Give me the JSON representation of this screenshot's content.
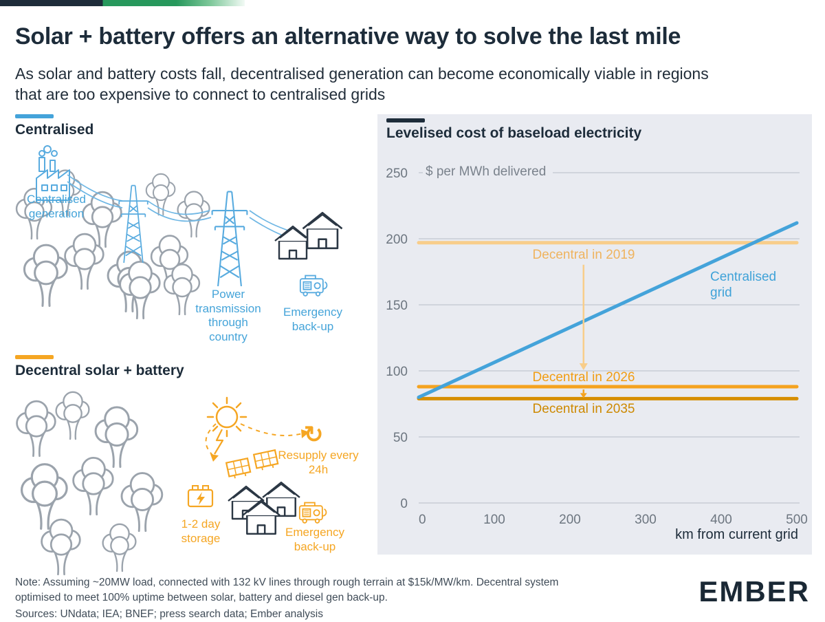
{
  "brand": {
    "logo": "EMBER",
    "colors": {
      "dark": "#1d2c3a",
      "blue": "#44a3da",
      "orange": "#f5a623",
      "orange_light": "#f8cd8a",
      "orange_dark": "#d68e00",
      "green": "#27985c",
      "panel_bg": "#e9ebf1"
    }
  },
  "header": {
    "title": "Solar + battery offers an alternative way to solve the last mile",
    "subtitle": "As solar and battery costs fall, decentralised generation can become economically viable in regions that are too expensive to connect to centralised grids"
  },
  "centralised": {
    "heading": "Centralised",
    "label_generation": "Centralised generation",
    "label_transmission": "Power transmission through country",
    "label_backup": "Emergency back-up"
  },
  "decentral": {
    "heading": "Decentral solar + battery",
    "label_resupply": "Resupply every 24h",
    "label_storage": "1-2 day storage",
    "label_backup": "Emergency back-up"
  },
  "icons": {
    "resupply": "↻"
  },
  "chart": {
    "heading": "Levelised cost of baseload electricity"
  },
  "chart_data": {
    "type": "line",
    "title": "Levelised cost of baseload electricity",
    "unit_label": "$ per MWh delivered",
    "xlabel": "km from current grid",
    "xlim": [
      0,
      500
    ],
    "ylim": [
      0,
      250
    ],
    "x_ticks": [
      0,
      100,
      200,
      300,
      400,
      500
    ],
    "y_ticks": [
      0,
      50,
      100,
      150,
      200,
      250
    ],
    "grid": "horizontal",
    "legend": "labels-on-chart",
    "series": [
      {
        "name": "Centralised grid",
        "color": "#44a3da",
        "label_color": "#3fa2d8",
        "x": [
          0,
          500
        ],
        "y": [
          80,
          212
        ]
      },
      {
        "name": "Decentral in 2019",
        "color": "#f8cd8a",
        "label_color": "#efb35e",
        "x": [
          0,
          500
        ],
        "y": [
          197,
          197
        ]
      },
      {
        "name": "Decentral in 2026",
        "color": "#f5a31f",
        "label_color": "#f19d13",
        "x": [
          0,
          500
        ],
        "y": [
          88,
          88
        ]
      },
      {
        "name": "Decentral in 2035",
        "color": "#d68e00",
        "label_color": "#cd8900",
        "x": [
          0,
          500
        ],
        "y": [
          79,
          79
        ]
      }
    ]
  },
  "footer": {
    "note": "Note: Assuming ~20MW load, connected with 132 kV lines through rough terrain at $15k/MW/km. Decentral system optimised to meet 100% uptime between solar, battery and diesel gen back-up.",
    "sources": "Sources: UNdata; IEA; BNEF; press search data; Ember analysis"
  }
}
